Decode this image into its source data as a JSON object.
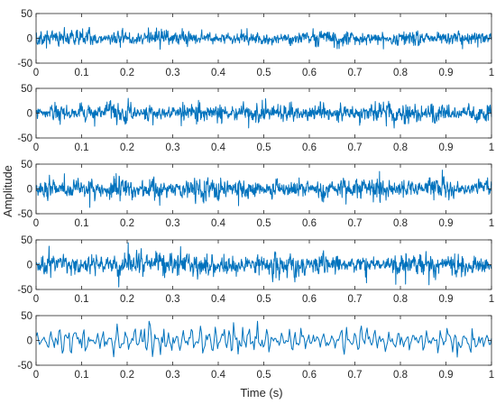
{
  "chart_data": {
    "type": "line",
    "layout": "stacked-subplots",
    "xlabel": "Time (s)",
    "ylabel": "Amplitude",
    "line_color": "#0072BD",
    "subplots": [
      {
        "xlim": [
          0,
          1
        ],
        "ylim": [
          -50,
          50
        ],
        "x_ticks": [
          "0",
          "0.1",
          "0.2",
          "0.3",
          "0.4",
          "0.5",
          "0.6",
          "0.7",
          "0.8",
          "0.9",
          "1"
        ],
        "y_ticks": [
          "50",
          "0",
          "-50"
        ],
        "signal": {
          "sample_points": 1400,
          "typical_amplitude": 10,
          "peak_amplitude": 22,
          "seed": 11,
          "kind": "dense-noise"
        }
      },
      {
        "xlim": [
          0,
          1
        ],
        "ylim": [
          -50,
          50
        ],
        "x_ticks": [
          "0",
          "0.1",
          "0.2",
          "0.3",
          "0.4",
          "0.5",
          "0.6",
          "0.7",
          "0.8",
          "0.9",
          "1"
        ],
        "y_ticks": [
          "50",
          "0",
          "-50"
        ],
        "signal": {
          "sample_points": 1400,
          "typical_amplitude": 12,
          "peak_amplitude": 30,
          "seed": 23,
          "kind": "dense-noise"
        }
      },
      {
        "xlim": [
          0,
          1
        ],
        "ylim": [
          -50,
          50
        ],
        "x_ticks": [
          "0",
          "0.1",
          "0.2",
          "0.3",
          "0.4",
          "0.5",
          "0.6",
          "0.7",
          "0.8",
          "0.9",
          "1"
        ],
        "y_ticks": [
          "50",
          "0",
          "-50"
        ],
        "signal": {
          "sample_points": 1400,
          "typical_amplitude": 13,
          "peak_amplitude": 38,
          "seed": 37,
          "kind": "dense-noise"
        }
      },
      {
        "xlim": [
          0,
          1
        ],
        "ylim": [
          -50,
          50
        ],
        "x_ticks": [
          "0",
          "0.1",
          "0.2",
          "0.3",
          "0.4",
          "0.5",
          "0.6",
          "0.7",
          "0.8",
          "0.9",
          "1"
        ],
        "y_ticks": [
          "50",
          "0",
          "-50"
        ],
        "signal": {
          "sample_points": 1400,
          "typical_amplitude": 14,
          "peak_amplitude": 45,
          "seed": 53,
          "kind": "dense-noise"
        }
      },
      {
        "xlim": [
          0,
          1
        ],
        "ylim": [
          -50,
          50
        ],
        "x_ticks": [
          "0",
          "0.1",
          "0.2",
          "0.3",
          "0.4",
          "0.5",
          "0.6",
          "0.7",
          "0.8",
          "0.9",
          "1"
        ],
        "y_ticks": [
          "50",
          "0",
          "-50"
        ],
        "signal": {
          "sample_points": 400,
          "typical_amplitude": 16,
          "peak_amplitude": 40,
          "seed": 71,
          "kind": "oscillation"
        }
      }
    ]
  }
}
